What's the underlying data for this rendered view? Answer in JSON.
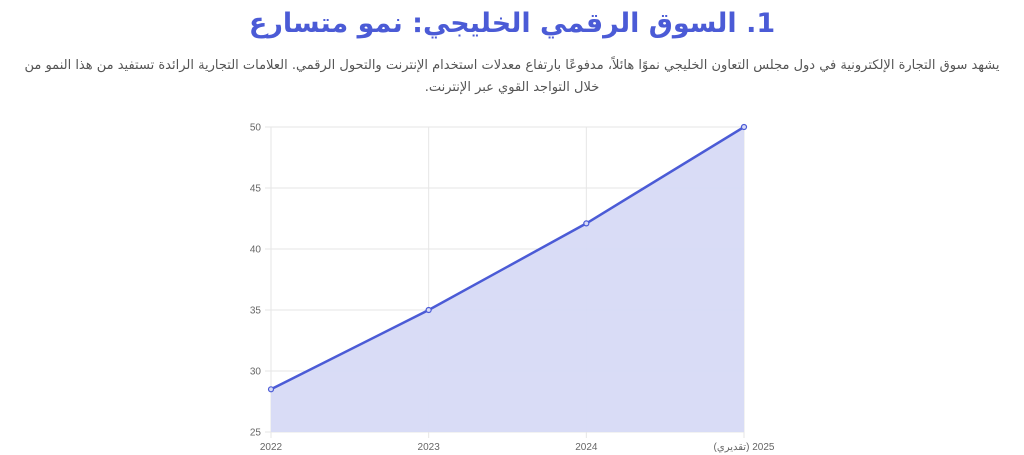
{
  "heading": {
    "title": "1. السوق الرقمي الخليجي: نمو متسارع",
    "description_line1": "يشهد سوق التجارة الإلكترونية في دول مجلس التعاون الخليجي نموًا هائلاً، مدفوعًا بارتفاع معدلات استخدام الإنترنت والتحول الرقمي. العلامات التجارية الرائدة تستفيد من هذا النمو من",
    "description_line2": "خلال التواجد القوي عبر الإنترنت."
  },
  "colors": {
    "title": "#4b5bd6",
    "description": "#555555",
    "line": "#4b5bd6",
    "fill": "#d7daf6",
    "grid": "#e6e6e6"
  },
  "chart_data": {
    "type": "area",
    "x": [
      "2022",
      "2023",
      "2024",
      "2025 (تقديري)"
    ],
    "series": [
      {
        "values": [
          28.5,
          35,
          42.1,
          50
        ]
      }
    ],
    "ylim": [
      25,
      50
    ],
    "yticks": [
      25,
      30,
      35,
      40,
      45,
      50
    ],
    "grid": true,
    "title": "",
    "xlabel": "",
    "ylabel": ""
  }
}
